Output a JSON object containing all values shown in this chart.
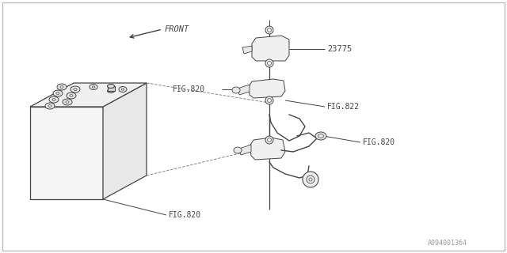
{
  "background_color": "#ffffff",
  "border_color": "#bbbbbb",
  "line_color": "#444444",
  "text_color": "#444444",
  "part_number": "23775",
  "front_label": "FRONT",
  "watermark": "A094001364",
  "fig820_upper": "FIG.820",
  "fig822": "FIG.822",
  "fig820_lower": "FIG.820",
  "fig820_battery": "FIG.820"
}
